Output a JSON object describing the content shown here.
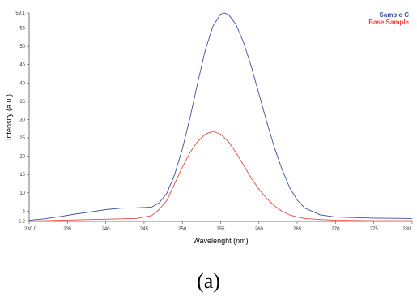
{
  "chart_data": {
    "type": "line",
    "xlabel": "Wavelenght (nm)",
    "ylabel": "Intensity (a.u.)",
    "xlim": [
      230,
      280
    ],
    "ylim": [
      2.2,
      59.1
    ],
    "x_ticks": [
      230,
      235,
      240,
      245,
      250,
      255,
      260,
      265,
      270,
      275,
      280
    ],
    "x_tick_labels": [
      "230.0",
      "235",
      "240",
      "245",
      "250",
      "255",
      "260",
      "265",
      "270",
      "275",
      "280."
    ],
    "y_ticks": [
      2.2,
      5,
      10,
      15,
      20,
      25,
      30,
      35,
      40,
      45,
      50,
      55,
      59.1
    ],
    "y_tick_labels": [
      "2.2",
      "5",
      "10",
      "15",
      "20",
      "25",
      "30",
      "35",
      "40",
      "45",
      "50",
      "55",
      "59.1"
    ],
    "grid": false,
    "legend_position": "top-right",
    "series": [
      {
        "name": "Sample C",
        "color": "#3b4fa3",
        "x": [
          230,
          232,
          234,
          236,
          238,
          240,
          242,
          244,
          246,
          247,
          248,
          249,
          250,
          251,
          252,
          253,
          254,
          255,
          255.5,
          256,
          257,
          258,
          259,
          260,
          261,
          262,
          263,
          264,
          265,
          266,
          268,
          270,
          275,
          280
        ],
        "y": [
          2.5,
          2.9,
          3.5,
          4.2,
          4.8,
          5.4,
          5.8,
          5.9,
          6.1,
          7.3,
          10.0,
          15.0,
          22.0,
          30.5,
          40.0,
          49.0,
          55.5,
          58.8,
          59.1,
          58.7,
          56.0,
          51.0,
          44.5,
          37.0,
          29.5,
          22.5,
          16.5,
          11.5,
          8.0,
          5.8,
          4.0,
          3.4,
          3.1,
          3.0
        ]
      },
      {
        "name": "Base Sample",
        "color": "#e8453c",
        "x": [
          230,
          232,
          234,
          236,
          238,
          240,
          242,
          244,
          246,
          247,
          248,
          249,
          250,
          251,
          252,
          253,
          254,
          255,
          256,
          257,
          258,
          259,
          260,
          261,
          262,
          263,
          264,
          265,
          266,
          268,
          270,
          275,
          280
        ],
        "y": [
          2.3,
          2.4,
          2.5,
          2.6,
          2.7,
          2.8,
          2.9,
          3.0,
          3.8,
          5.5,
          8.0,
          12.5,
          17.0,
          21.0,
          24.0,
          26.0,
          26.8,
          26.0,
          24.0,
          21.0,
          17.5,
          14.0,
          11.0,
          8.5,
          6.5,
          5.0,
          4.0,
          3.4,
          3.0,
          2.7,
          2.5,
          2.4,
          2.4
        ]
      }
    ]
  },
  "caption": "(a)"
}
